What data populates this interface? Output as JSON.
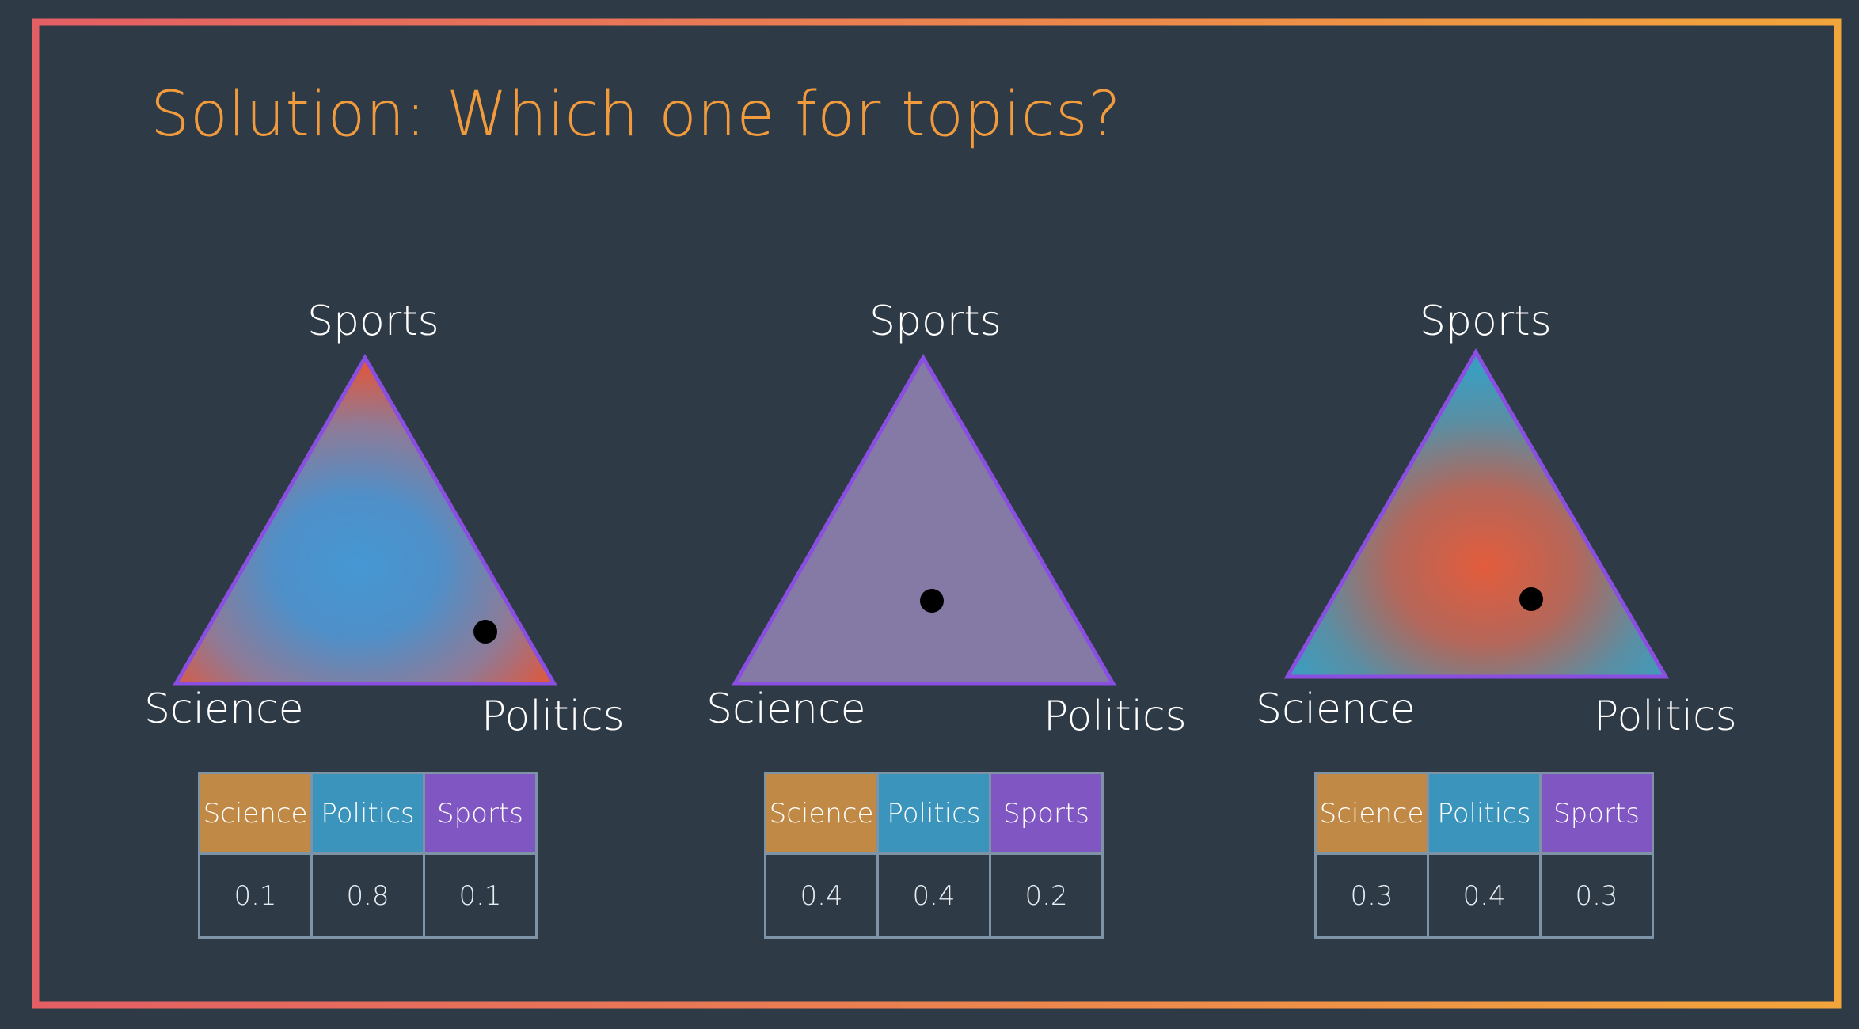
{
  "title": "Solution: Which one for topics?",
  "colors": {
    "background": "#2f3a47",
    "title": "#f19b3c",
    "triangle_outline": "#8a4fe0",
    "science": "#c08a46",
    "politics": "#3a94bb",
    "sports": "#7f56c2",
    "dot": "#000000"
  },
  "panels": [
    {
      "labels": {
        "top": "Sports",
        "left": "Science",
        "right": "Politics"
      },
      "header": [
        "Science",
        "Politics",
        "Sports"
      ],
      "values": [
        "0.1",
        "0.8",
        "0.1"
      ],
      "fill": "center-blue-corners-red"
    },
    {
      "labels": {
        "top": "Sports",
        "left": "Science",
        "right": "Politics"
      },
      "header": [
        "Science",
        "Politics",
        "Sports"
      ],
      "values": [
        "0.4",
        "0.4",
        "0.2"
      ],
      "fill": "uniform-purple"
    },
    {
      "labels": {
        "top": "Sports",
        "left": "Science",
        "right": "Politics"
      },
      "header": [
        "Science",
        "Politics",
        "Sports"
      ],
      "values": [
        "0.3",
        "0.4",
        "0.3"
      ],
      "fill": "center-red-corners-teal"
    }
  ]
}
